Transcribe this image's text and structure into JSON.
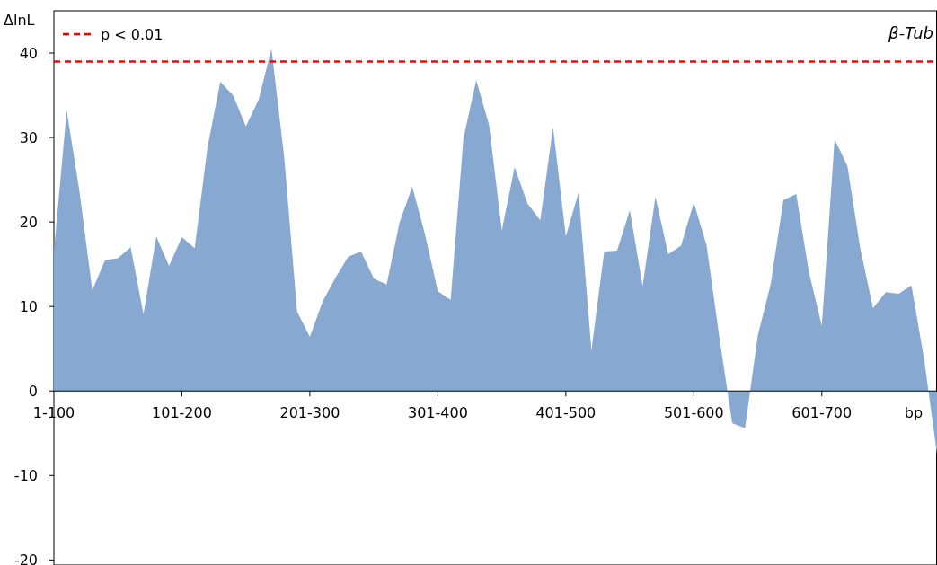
{
  "chart_data": {
    "type": "area",
    "title": "β-Tub",
    "xlabel": "bp",
    "ylabel": "ΔlnL",
    "categories": [
      "1-100",
      null,
      null,
      null,
      null,
      null,
      null,
      null,
      null,
      null,
      "101-200",
      null,
      null,
      null,
      null,
      null,
      null,
      null,
      null,
      null,
      "201-300",
      null,
      null,
      null,
      null,
      null,
      null,
      null,
      null,
      null,
      "301-400",
      null,
      null,
      null,
      null,
      null,
      null,
      null,
      null,
      null,
      "401-500",
      null,
      null,
      null,
      null,
      null,
      null,
      null,
      null,
      null,
      "501-600",
      null,
      null,
      null,
      null,
      null,
      null,
      null,
      null,
      null,
      "601-700",
      null,
      null,
      null,
      null,
      null,
      null,
      null,
      null,
      null
    ],
    "series": [
      {
        "color": "#87a8d0",
        "values": [
          16.5,
          33.2,
          23.6,
          11.9,
          15.5,
          15.7,
          17.0,
          9.1,
          18.3,
          14.8,
          18.2,
          16.9,
          28.8,
          36.6,
          35.0,
          31.3,
          34.5,
          40.5,
          27.6,
          9.4,
          6.4,
          10.6,
          13.4,
          15.9,
          16.5,
          13.3,
          12.6,
          19.9,
          24.2,
          18.5,
          11.8,
          10.8,
          29.9,
          36.8,
          31.5,
          19.0,
          26.5,
          22.2,
          20.2,
          31.2,
          18.3,
          23.5,
          4.8,
          16.5,
          16.6,
          21.4,
          12.4,
          23.0,
          16.2,
          17.2,
          22.3,
          17.2,
          6.3,
          -3.8,
          -4.4,
          6.6,
          12.6,
          22.6,
          23.3,
          14.0,
          7.7,
          29.8,
          26.6,
          16.9,
          9.8,
          11.7,
          11.5,
          12.5,
          3.7,
          -7.5
        ]
      }
    ],
    "ylim": [
      -20.6,
      45
    ],
    "yticks": [
      -20,
      -10,
      0,
      10,
      20,
      30,
      40
    ],
    "legend": "top left",
    "ref_lines": [
      {
        "axis": "y",
        "value": 39,
        "label": "p < 0.01",
        "color": "#ff0000",
        "line_style": "dashed"
      }
    ]
  }
}
